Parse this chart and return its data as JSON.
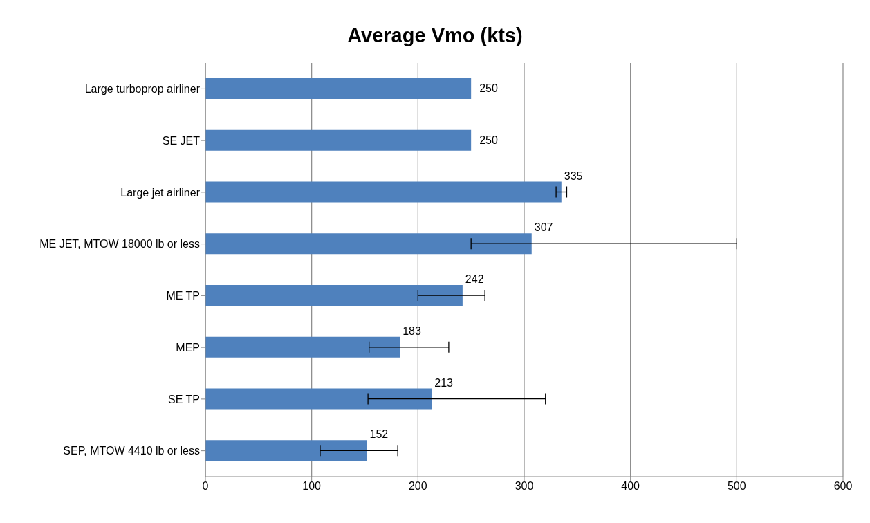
{
  "chart_data": {
    "type": "bar",
    "orientation": "horizontal",
    "title": "Average Vmo (kts)",
    "categories": [
      "Large turboprop airliner",
      "SE JET",
      "Large jet airliner",
      "ME JET, MTOW 18000 lb or less",
      "ME TP",
      "MEP",
      "SE TP",
      "SEP, MTOW 4410 lb or less"
    ],
    "values": [
      250,
      250,
      335,
      307,
      242,
      183,
      213,
      152
    ],
    "errors": [
      null,
      null,
      [
        330,
        340
      ],
      [
        250,
        500
      ],
      [
        200,
        263
      ],
      [
        154,
        229
      ],
      [
        153,
        320
      ],
      [
        108,
        181
      ]
    ],
    "color": "#4f81bd",
    "data_labels": true,
    "xlim": [
      0,
      600
    ],
    "xticks": [
      0,
      100,
      200,
      300,
      400,
      500,
      600
    ],
    "grid": "x"
  }
}
